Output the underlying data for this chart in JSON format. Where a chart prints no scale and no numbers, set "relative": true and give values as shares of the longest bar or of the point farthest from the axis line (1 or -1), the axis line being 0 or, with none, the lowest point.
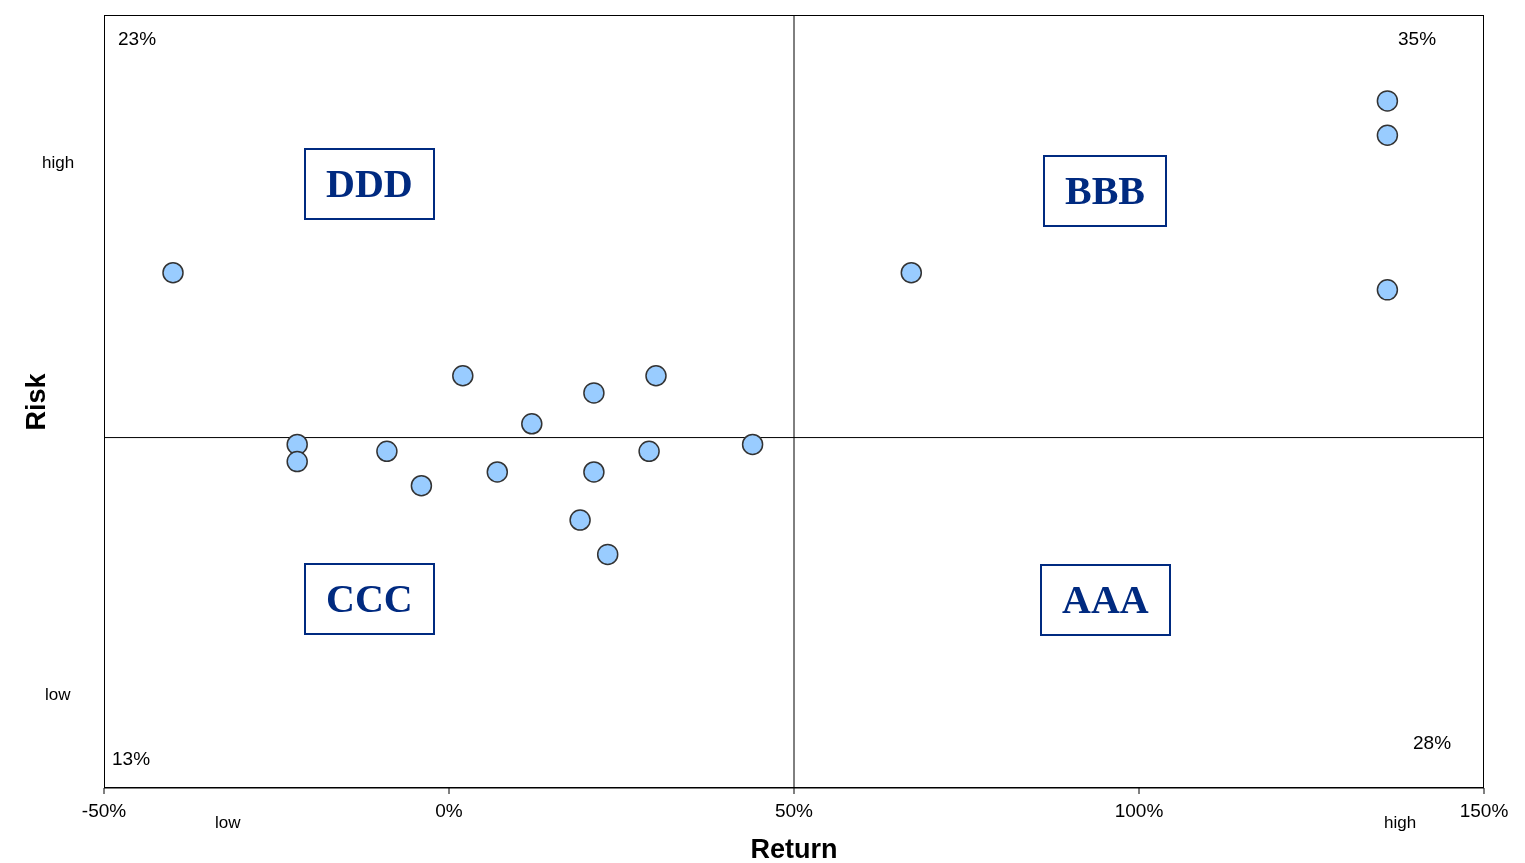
{
  "chart_data": {
    "type": "scatter",
    "xlabel": "Return",
    "ylabel": "Risk",
    "relative": true,
    "marker": "circle",
    "xlim": [
      -50,
      150
    ],
    "xticks": [
      {
        "value": -50,
        "label": "-50%"
      },
      {
        "value": 0,
        "label": "0%"
      },
      {
        "value": 50,
        "label": "50%"
      },
      {
        "value": 100,
        "label": "100%"
      },
      {
        "value": 150,
        "label": "150%"
      }
    ],
    "series": [
      {
        "color": "#99ccff",
        "x": [
          -40,
          67,
          136,
          136,
          136,
          2,
          30,
          21,
          12,
          -22,
          -22,
          -9,
          -4,
          7,
          21,
          29,
          44,
          19,
          23
        ],
        "values": [
          0.75,
          0.75,
          1.0,
          0.95,
          0.725,
          0.6,
          0.6,
          0.575,
          0.53,
          0.5,
          0.475,
          0.49,
          0.44,
          0.46,
          0.46,
          0.49,
          0.5,
          0.39,
          0.34
        ]
      }
    ],
    "ref_lines": [
      {
        "axis": "x",
        "value": 50,
        "color": "#000000"
      },
      {
        "axis": "y",
        "value": 0.51,
        "color": "#000000"
      }
    ],
    "annotations": [
      "23%",
      "35%",
      "13%",
      "28%",
      "DDD",
      "BBB",
      "CCC",
      "AAA",
      "high",
      "low",
      "low",
      "high"
    ]
  }
}
